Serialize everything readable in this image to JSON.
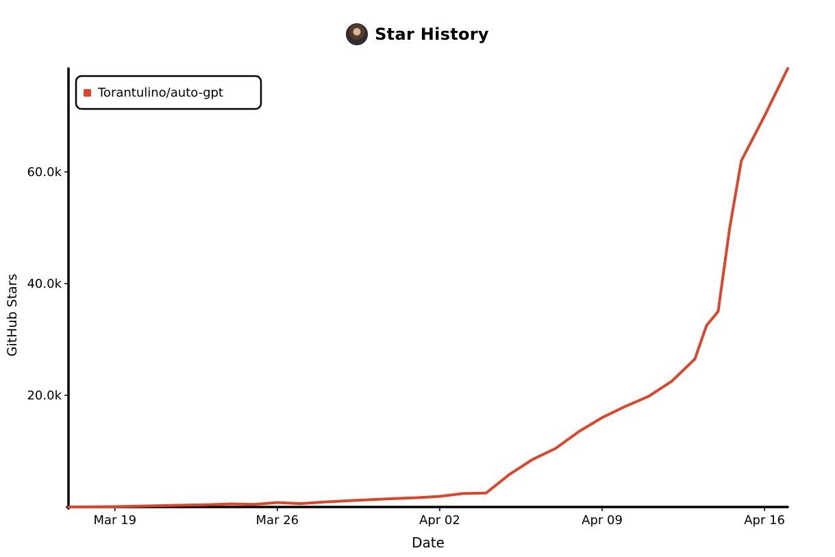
{
  "header": {
    "title": "Star History",
    "avatar_icon": "user-avatar-icon"
  },
  "chart_data": {
    "type": "line",
    "title": "Star History",
    "xlabel": "Date",
    "ylabel": "GitHub Stars",
    "x_tick_labels": [
      "Mar 19",
      "Mar 26",
      "Apr 02",
      "Apr 09",
      "Apr 16"
    ],
    "x_ticks": [
      "2023-03-19",
      "2023-03-26",
      "2023-04-02",
      "2023-04-09",
      "2023-04-16"
    ],
    "xlim": [
      "2023-03-17",
      "2023-04-17"
    ],
    "y_tick_labels": [
      "20.0k",
      "40.0k",
      "60.0k"
    ],
    "y_ticks": [
      20000,
      40000,
      60000
    ],
    "ylim": [
      0,
      78500
    ],
    "legend_position": "top-left",
    "grid": false,
    "series": [
      {
        "name": "Torantulino/auto-gpt",
        "color": "#dd4528",
        "points": [
          [
            "2023-03-17",
            0
          ],
          [
            "2023-03-19",
            60
          ],
          [
            "2023-03-21",
            250
          ],
          [
            "2023-03-23",
            400
          ],
          [
            "2023-03-24",
            550
          ],
          [
            "2023-03-25",
            450
          ],
          [
            "2023-03-26",
            800
          ],
          [
            "2023-03-27",
            600
          ],
          [
            "2023-03-28",
            900
          ],
          [
            "2023-03-29",
            1100
          ],
          [
            "2023-03-30",
            1300
          ],
          [
            "2023-03-31",
            1500
          ],
          [
            "2023-04-01",
            1650
          ],
          [
            "2023-04-02",
            1900
          ],
          [
            "2023-04-03",
            2400
          ],
          [
            "2023-04-04",
            2500
          ],
          [
            "2023-04-05",
            5800
          ],
          [
            "2023-04-06",
            8500
          ],
          [
            "2023-04-07",
            10500
          ],
          [
            "2023-04-08",
            13500
          ],
          [
            "2023-04-09",
            16000
          ],
          [
            "2023-04-10",
            18000
          ],
          [
            "2023-04-11",
            19800
          ],
          [
            "2023-04-12",
            22500
          ],
          [
            "2023-04-13",
            26500
          ],
          [
            "2023-04-13.5",
            32500
          ],
          [
            "2023-04-14",
            35000
          ],
          [
            "2023-04-14.5",
            50000
          ],
          [
            "2023-04-15",
            62000
          ],
          [
            "2023-04-16",
            70000
          ],
          [
            "2023-04-17",
            78500
          ]
        ]
      }
    ]
  }
}
